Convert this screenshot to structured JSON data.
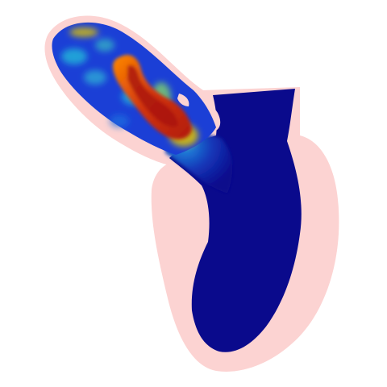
{
  "scene": {
    "subject": "heart-flow-simulation",
    "colors": {
      "background": "#ffffff",
      "tissue": "#fcd3d2",
      "tissue_edge": "#f7c4c3",
      "flow_low": "#0a0a8c",
      "flow_mid_low": "#1b3fd6",
      "flow_mid": "#22c0d8",
      "flow_mid_high": "#e8d800",
      "flow_high": "#c72a10"
    }
  }
}
